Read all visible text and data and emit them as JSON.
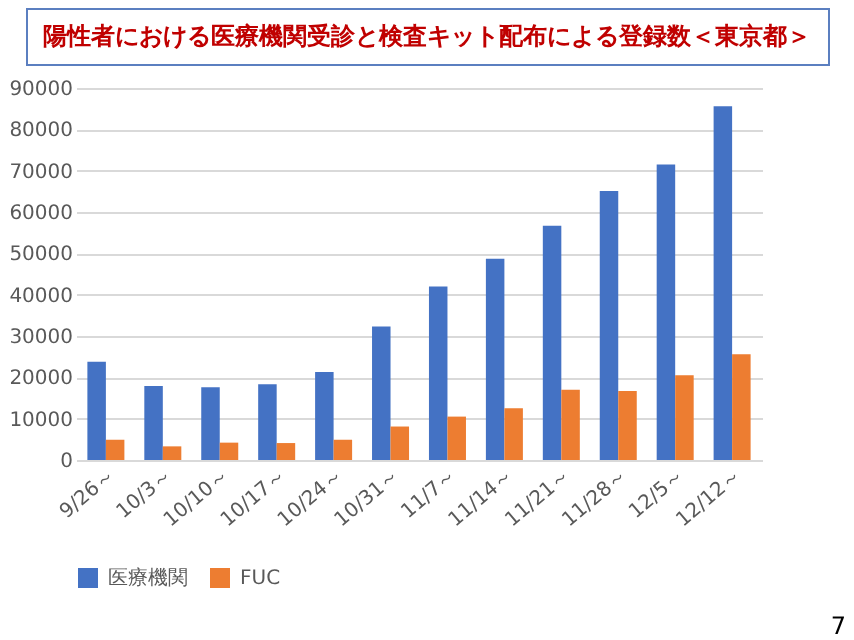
{
  "chart_data": {
    "type": "bar",
    "title": "陽性者における医療機関受診と検査キット配布による登録数＜東京都＞",
    "categories": [
      "9/26～",
      "10/3～",
      "10/10～",
      "10/17～",
      "10/24～",
      "10/31～",
      "11/7～",
      "11/14～",
      "11/21～",
      "11/28～",
      "12/5～",
      "12/12～"
    ],
    "series": [
      {
        "name": "医療機関",
        "color": "#4472c4",
        "values": [
          23800,
          17900,
          17600,
          18300,
          21300,
          32300,
          42000,
          48700,
          56700,
          65100,
          71500,
          85600
        ]
      },
      {
        "name": "FUC",
        "color": "#ed7d31",
        "values": [
          4900,
          3300,
          4200,
          4100,
          4900,
          8100,
          10500,
          12500,
          17000,
          16700,
          20500,
          25600
        ]
      }
    ],
    "ylim": [
      0,
      90000
    ],
    "yticks": [
      0,
      10000,
      20000,
      30000,
      40000,
      50000,
      60000,
      70000,
      80000,
      90000
    ],
    "grid": "y",
    "legend": "bottom",
    "annotations": [
      "7"
    ]
  }
}
